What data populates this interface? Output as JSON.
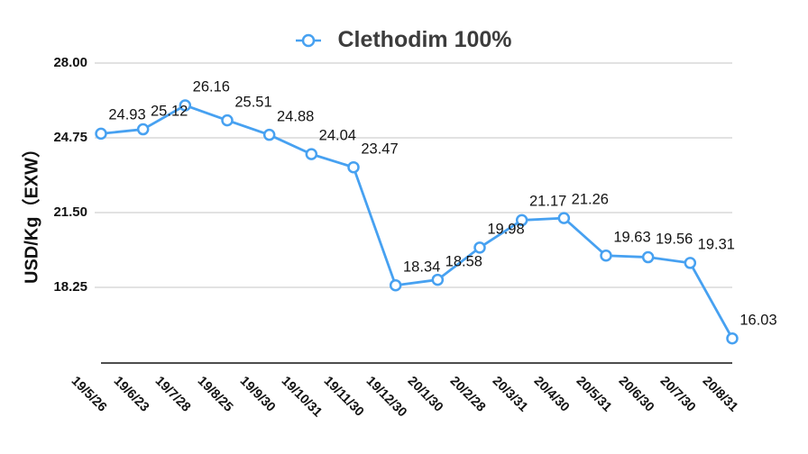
{
  "chart_data": {
    "type": "line",
    "title": "Clethodim 100%",
    "ylabel": "USD/Kg（EXW）",
    "xlabel": "",
    "categories": [
      "19/5/26",
      "19/6/23",
      "19/7/28",
      "19/8/25",
      "19/9/30",
      "19/10/31",
      "19/11/30",
      "19/12/30",
      "20/1/30",
      "20/2/28",
      "20/3/31",
      "20/4/30",
      "20/5/31",
      "20/6/30",
      "20/7/30",
      "20/8/31"
    ],
    "values": [
      24.93,
      25.12,
      26.16,
      25.51,
      24.88,
      24.04,
      23.47,
      18.34,
      18.58,
      19.98,
      21.17,
      21.26,
      19.63,
      19.56,
      19.31,
      16.03
    ],
    "yticks": [
      "28.00",
      "24.75",
      "21.50",
      "18.25"
    ],
    "ylim": [
      15,
      28
    ],
    "grid": true,
    "legend_position": "top",
    "legend_entries": [
      "Clethodim 100%"
    ],
    "colors": {
      "line": "#47A1F1",
      "marker_fill": "#FFFFFF",
      "grid": "#D9D9D9",
      "axis": "#4D4D4D",
      "tick_text": "#111111",
      "label_text": "#141414",
      "title_text": "#3C3C3C"
    }
  }
}
